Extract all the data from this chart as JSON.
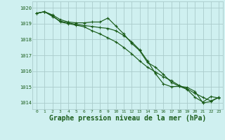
{
  "background_color": "#cff0f0",
  "grid_color": "#aacccc",
  "line_color": "#1a5c1a",
  "marker_color": "#1a5c1a",
  "xlabel": "Graphe pression niveau de la mer (hPa)",
  "xlabel_fontsize": 7,
  "ylabel_values": [
    1014,
    1015,
    1016,
    1017,
    1018,
    1019,
    1020
  ],
  "xlim": [
    -0.5,
    23.5
  ],
  "ylim": [
    1013.6,
    1020.4
  ],
  "series1_x": [
    0,
    1,
    2,
    3,
    4,
    5,
    6,
    7,
    8,
    9,
    10,
    11,
    12,
    13,
    14,
    15,
    16,
    17,
    18,
    19,
    20,
    21,
    22,
    23
  ],
  "series1_y": [
    1019.65,
    1019.75,
    1019.55,
    1019.25,
    1019.1,
    1019.05,
    1019.05,
    1019.1,
    1019.1,
    1019.35,
    1018.85,
    1018.35,
    1017.75,
    1017.3,
    1016.55,
    1016.25,
    1015.8,
    1015.3,
    1015.05,
    1014.85,
    1014.35,
    1014.05,
    1014.4,
    1014.3
  ],
  "series2_x": [
    0,
    1,
    2,
    3,
    4,
    5,
    6,
    7,
    8,
    9,
    10,
    11,
    12,
    13,
    14,
    15,
    16,
    17,
    18,
    19,
    20,
    21,
    22,
    23
  ],
  "series2_y": [
    1019.65,
    1019.75,
    1019.5,
    1019.1,
    1019.0,
    1018.9,
    1018.8,
    1018.55,
    1018.35,
    1018.1,
    1017.85,
    1017.5,
    1017.1,
    1016.65,
    1016.25,
    1015.95,
    1015.65,
    1015.4,
    1015.1,
    1014.88,
    1014.6,
    1014.35,
    1014.12,
    1014.35
  ],
  "series3_x": [
    0,
    1,
    2,
    3,
    4,
    5,
    6,
    7,
    8,
    9,
    10,
    11,
    12,
    13,
    14,
    15,
    16,
    17,
    18,
    19,
    20,
    21,
    22,
    23
  ],
  "series3_y": [
    1019.65,
    1019.75,
    1019.45,
    1019.15,
    1019.05,
    1018.95,
    1018.88,
    1018.82,
    1018.75,
    1018.7,
    1018.55,
    1018.25,
    1017.85,
    1017.35,
    1016.65,
    1015.85,
    1015.2,
    1015.02,
    1015.05,
    1014.98,
    1014.72,
    1014.0,
    1014.08,
    1014.35
  ]
}
